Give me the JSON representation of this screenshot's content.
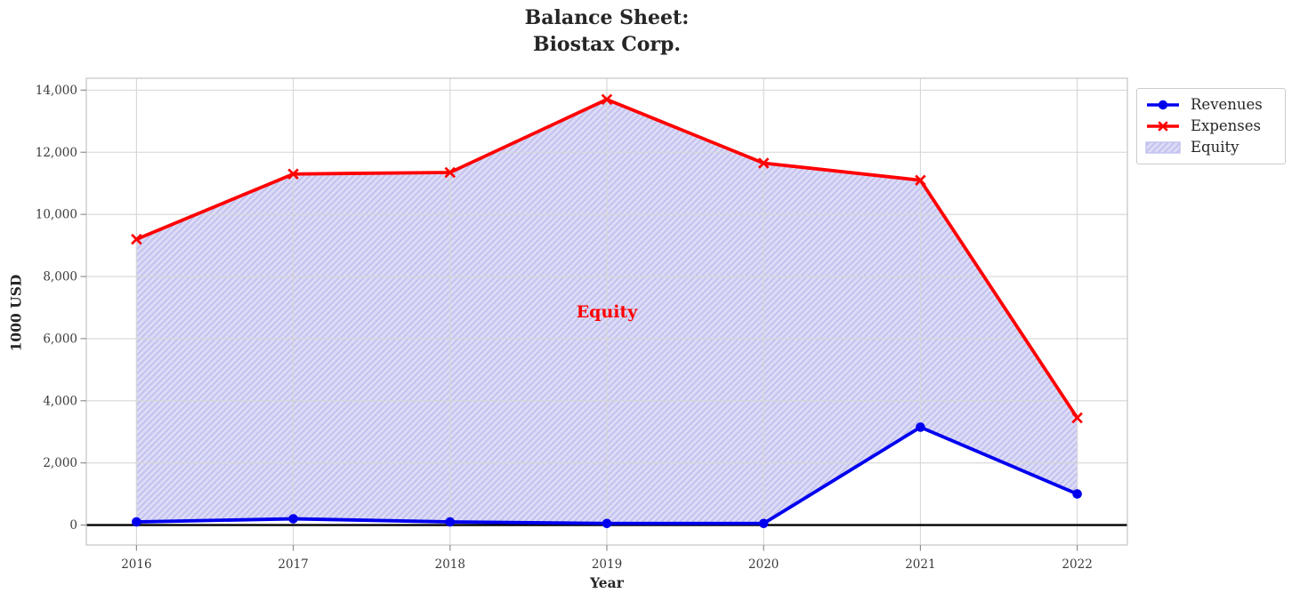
{
  "chart_data": {
    "type": "line",
    "title": "Balance Sheet:\nBiostax Corp.",
    "title_lines": [
      "Balance Sheet:",
      "Biostax Corp."
    ],
    "xlabel": "Year",
    "ylabel": "1000 USD",
    "x": [
      2016,
      2017,
      2018,
      2019,
      2020,
      2021,
      2022
    ],
    "xtick_labels": [
      "2016",
      "2017",
      "2018",
      "2019",
      "2020",
      "2021",
      "2022"
    ],
    "yticks": [
      0,
      2000,
      4000,
      6000,
      8000,
      10000,
      12000,
      14000
    ],
    "ytick_labels": [
      "0",
      "2,000",
      "4,000",
      "6,000",
      "8,000",
      "10,000",
      "12,000",
      "14,000"
    ],
    "xlim": [
      2015.68,
      2022.32
    ],
    "ylim": [
      -643,
      14383
    ],
    "grid": true,
    "zero_line": true,
    "series": [
      {
        "name": "Revenues",
        "color": "#0000ee",
        "marker": "circle",
        "values": [
          100,
          200,
          100,
          50,
          50,
          3150,
          1000
        ]
      },
      {
        "name": "Expenses",
        "color": "#ff0000",
        "marker": "x",
        "values": [
          9200,
          11300,
          11350,
          13700,
          11650,
          11100,
          3450
        ]
      }
    ],
    "fill_between": {
      "name": "Equity",
      "upper": "Expenses",
      "lower": "Revenues",
      "fill_color": "#dddcf6",
      "hatch_color": "#c2c1ef",
      "edge_color": "#c6c5f0",
      "annotation": {
        "text": "Equity",
        "x": 2019,
        "y": 6850,
        "color": "#ff0000"
      }
    },
    "legend_position": "upper-right-outside",
    "legend_entries": [
      "Revenues",
      "Expenses",
      "Equity"
    ],
    "colors": {
      "grid": "#d6d6d6",
      "spine": "#c9c9c9",
      "tick": "#8f8f8f",
      "tick_label": "#3a3a3a",
      "zero_line": "#000000",
      "title": "#262626"
    }
  }
}
